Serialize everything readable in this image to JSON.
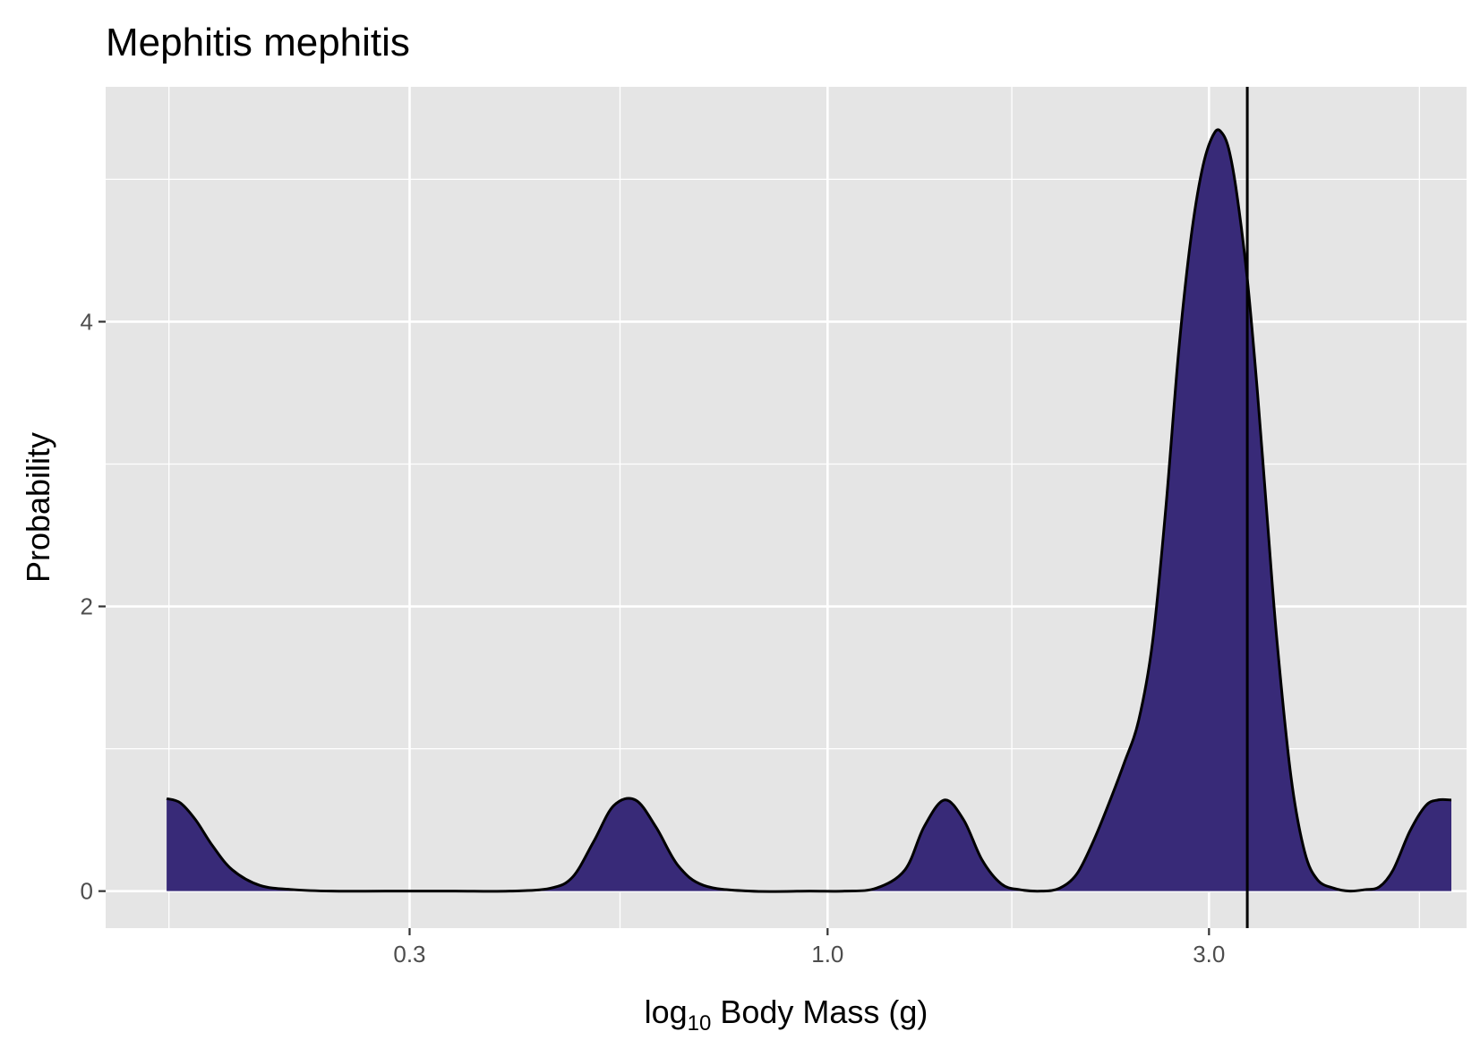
{
  "chart_data": {
    "type": "area",
    "title": "Mephitis mephitis",
    "xlabel": {
      "prefix": "log",
      "subscript": "10",
      "suffix": " Body Mass ",
      "unit": "(g)"
    },
    "ylabel": "Probability",
    "x_scale": "log10",
    "xlim": [
      0.125,
      6.3
    ],
    "ylim": [
      -0.26,
      5.65
    ],
    "x_ticks": [
      {
        "value": 0.3,
        "label": "0.3"
      },
      {
        "value": 1.0,
        "label": "1.0"
      },
      {
        "value": 3.0,
        "label": "3.0"
      }
    ],
    "x_minor_gridlines": [
      0.15,
      0.55,
      1.7,
      5.5
    ],
    "y_ticks": [
      {
        "value": 0,
        "label": "0"
      },
      {
        "value": 2,
        "label": "2"
      },
      {
        "value": 4,
        "label": "4"
      }
    ],
    "y_minor_gridlines": [
      1,
      3,
      5
    ],
    "grid": true,
    "panel_background": "#e5e5e5",
    "fill_color": "#382a78",
    "line_color": "#000000",
    "vline": 3.35,
    "density": {
      "x": [
        0.149,
        0.155,
        0.162,
        0.17,
        0.18,
        0.195,
        0.215,
        0.24,
        0.28,
        0.34,
        0.4,
        0.45,
        0.48,
        0.51,
        0.54,
        0.575,
        0.61,
        0.65,
        0.7,
        0.8,
        0.95,
        1.05,
        1.15,
        1.25,
        1.32,
        1.4,
        1.48,
        1.56,
        1.65,
        1.74,
        1.85,
        1.95,
        2.05,
        2.15,
        2.25,
        2.35,
        2.45,
        2.55,
        2.65,
        2.75,
        2.85,
        2.95,
        3.05,
        3.12,
        3.18,
        3.25,
        3.35,
        3.45,
        3.55,
        3.65,
        3.8,
        3.95,
        4.1,
        4.3,
        4.5,
        4.7,
        4.9,
        5.1,
        5.35,
        5.6,
        5.8,
        6.03
      ],
      "y": [
        0.65,
        0.62,
        0.5,
        0.32,
        0.15,
        0.04,
        0.01,
        0.0,
        0.0,
        0.0,
        0.0,
        0.02,
        0.1,
        0.35,
        0.6,
        0.64,
        0.45,
        0.18,
        0.04,
        0.0,
        0.0,
        0.0,
        0.02,
        0.15,
        0.45,
        0.64,
        0.5,
        0.22,
        0.05,
        0.01,
        0.0,
        0.02,
        0.12,
        0.35,
        0.62,
        0.9,
        1.2,
        1.75,
        2.7,
        3.8,
        4.6,
        5.1,
        5.33,
        5.32,
        5.2,
        4.9,
        4.3,
        3.5,
        2.6,
        1.75,
        0.8,
        0.28,
        0.08,
        0.02,
        0.0,
        0.01,
        0.03,
        0.15,
        0.42,
        0.6,
        0.64,
        0.64
      ]
    }
  }
}
